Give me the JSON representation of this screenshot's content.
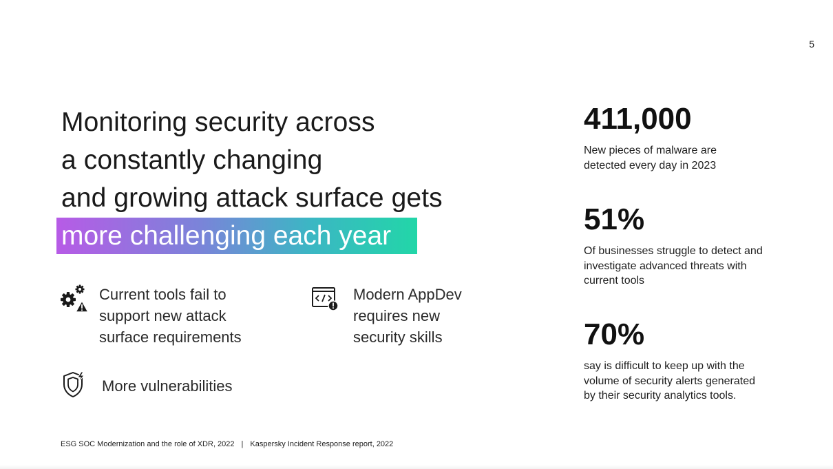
{
  "page_number": "5",
  "headline": {
    "lines": [
      "Monitoring security across",
      "a constantly changing",
      "and growing attack surface gets"
    ],
    "highlight": "more challenging each year"
  },
  "features": [
    {
      "icon": "gears-warning-icon",
      "text": "Current tools fail to support new attack surface requirements"
    },
    {
      "icon": "code-window-alert-icon",
      "text": "Modern AppDev requires new security skills"
    },
    {
      "icon": "shield-lightning-icon",
      "text": "More vulnerabilities"
    }
  ],
  "stats": [
    {
      "value": "411,000",
      "description": "New pieces of malware are detected every day in 2023"
    },
    {
      "value": "51%",
      "description": "Of businesses struggle to detect and investigate advanced threats with current tools"
    },
    {
      "value": "70%",
      "description": "say is difficult to keep up with the volume of security alerts generated by their security analytics tools."
    }
  ],
  "footer": {
    "source_1": "ESG SOC Modernization and the role of XDR, 2022",
    "separator": "|",
    "source_2": "Kaspersky Incident Response report, 2022"
  },
  "colors": {
    "gradient_start": "#b75be6",
    "gradient_end": "#22d6a8",
    "text": "#1a1a1a"
  }
}
